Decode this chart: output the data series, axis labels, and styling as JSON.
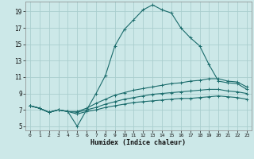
{
  "xlabel": "Humidex (Indice chaleur)",
  "bg_color": "#cce8e8",
  "grid_color": "#aacece",
  "line_color": "#1a6b6b",
  "xlim": [
    -0.5,
    23.5
  ],
  "ylim": [
    4.5,
    20.2
  ],
  "xticks": [
    0,
    1,
    2,
    3,
    4,
    5,
    6,
    7,
    8,
    9,
    10,
    11,
    12,
    13,
    14,
    15,
    16,
    17,
    18,
    19,
    20,
    21,
    22,
    23
  ],
  "yticks": [
    5,
    7,
    9,
    11,
    13,
    15,
    17,
    19
  ],
  "line1_x": [
    0,
    1,
    2,
    3,
    4,
    5,
    6,
    7,
    8,
    9,
    10,
    11,
    12,
    13,
    14,
    15,
    16,
    17,
    18,
    19,
    20,
    21,
    22,
    23
  ],
  "line1_y": [
    7.5,
    7.2,
    6.7,
    7.0,
    6.8,
    5.0,
    7.0,
    9.0,
    11.2,
    14.8,
    16.8,
    18.0,
    19.2,
    19.8,
    19.2,
    18.8,
    17.0,
    15.8,
    14.8,
    12.5,
    10.5,
    10.3,
    10.2,
    9.5
  ],
  "line2_x": [
    0,
    1,
    2,
    3,
    4,
    5,
    6,
    7,
    8,
    9,
    10,
    11,
    12,
    13,
    14,
    15,
    16,
    17,
    18,
    19,
    20,
    21,
    22,
    23
  ],
  "line2_y": [
    7.5,
    7.2,
    6.7,
    7.0,
    6.8,
    6.8,
    7.2,
    7.8,
    8.3,
    8.8,
    9.1,
    9.4,
    9.6,
    9.8,
    10.0,
    10.2,
    10.3,
    10.5,
    10.6,
    10.8,
    10.8,
    10.5,
    10.4,
    9.8
  ],
  "line3_x": [
    0,
    1,
    2,
    3,
    4,
    5,
    6,
    7,
    8,
    9,
    10,
    11,
    12,
    13,
    14,
    15,
    16,
    17,
    18,
    19,
    20,
    21,
    22,
    23
  ],
  "line3_y": [
    7.5,
    7.2,
    6.7,
    7.0,
    6.8,
    6.7,
    7.0,
    7.3,
    7.7,
    8.0,
    8.3,
    8.5,
    8.7,
    8.9,
    9.0,
    9.1,
    9.2,
    9.3,
    9.4,
    9.5,
    9.5,
    9.3,
    9.2,
    9.0
  ],
  "line4_x": [
    0,
    1,
    2,
    3,
    4,
    5,
    6,
    7,
    8,
    9,
    10,
    11,
    12,
    13,
    14,
    15,
    16,
    17,
    18,
    19,
    20,
    21,
    22,
    23
  ],
  "line4_y": [
    7.5,
    7.2,
    6.7,
    7.0,
    6.8,
    6.5,
    6.8,
    7.0,
    7.3,
    7.5,
    7.7,
    7.9,
    8.0,
    8.1,
    8.2,
    8.3,
    8.4,
    8.4,
    8.5,
    8.6,
    8.7,
    8.6,
    8.5,
    8.3
  ]
}
